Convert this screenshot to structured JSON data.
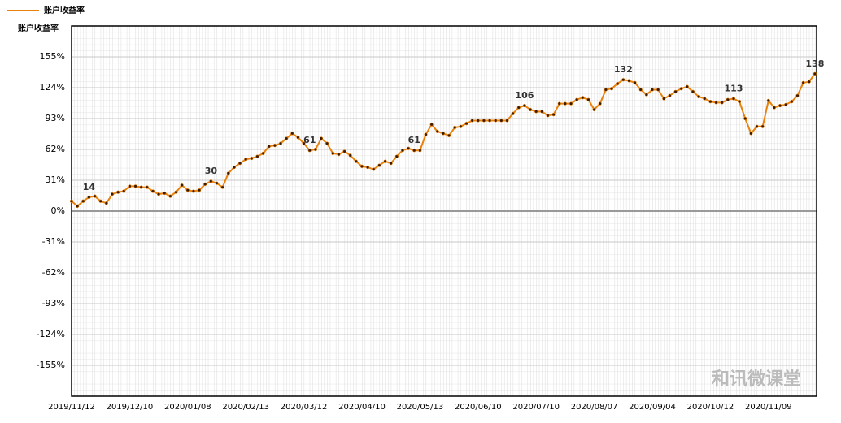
{
  "chart_data": {
    "type": "line",
    "legend_label": "账户收益率",
    "y_label": "账户收益率",
    "watermark": "和讯微课堂",
    "series": [
      {
        "name": "账户收益率",
        "color": "#e8820c",
        "values": [
          10,
          5,
          10,
          14,
          15,
          10,
          8,
          17,
          19,
          20,
          25,
          25,
          24,
          24,
          20,
          17,
          18,
          15,
          19,
          26,
          21,
          20,
          21,
          27,
          30,
          28,
          24,
          38,
          44,
          48,
          52,
          53,
          55,
          58,
          65,
          66,
          68,
          73,
          78,
          74,
          68,
          61,
          62,
          73,
          68,
          58,
          57,
          60,
          56,
          50,
          45,
          44,
          42,
          46,
          50,
          48,
          55,
          61,
          63,
          61,
          61,
          77,
          87,
          80,
          78,
          76,
          84,
          85,
          88,
          91,
          91,
          91,
          91,
          91,
          91,
          91,
          98,
          104,
          106,
          102,
          100,
          100,
          96,
          97,
          108,
          108,
          108,
          112,
          114,
          112,
          102,
          108,
          122,
          123,
          128,
          132,
          131,
          129,
          122,
          117,
          122,
          122,
          113,
          116,
          120,
          123,
          125,
          120,
          115,
          113,
          110,
          109,
          109,
          112,
          113,
          110,
          93,
          78,
          85,
          85,
          111,
          104,
          106,
          107,
          110,
          116,
          129,
          130,
          138
        ],
        "value_labels": [
          null,
          null,
          null,
          "14",
          null,
          null,
          null,
          null,
          null,
          null,
          null,
          null,
          null,
          null,
          null,
          null,
          null,
          null,
          null,
          null,
          null,
          null,
          null,
          null,
          "30",
          null,
          null,
          null,
          null,
          null,
          null,
          null,
          null,
          null,
          null,
          null,
          null,
          null,
          null,
          null,
          null,
          "61",
          null,
          null,
          null,
          null,
          null,
          null,
          null,
          null,
          null,
          null,
          null,
          null,
          null,
          null,
          null,
          null,
          null,
          "61",
          null,
          null,
          null,
          null,
          null,
          null,
          null,
          null,
          null,
          null,
          null,
          null,
          null,
          null,
          null,
          null,
          null,
          null,
          "106",
          null,
          null,
          null,
          null,
          null,
          null,
          null,
          null,
          null,
          null,
          null,
          null,
          null,
          null,
          null,
          null,
          "132",
          null,
          null,
          null,
          null,
          null,
          null,
          null,
          null,
          null,
          null,
          null,
          null,
          null,
          null,
          null,
          null,
          null,
          null,
          "113",
          null,
          null,
          null,
          null,
          null,
          null,
          null,
          null,
          null,
          null,
          null,
          null,
          null,
          "138"
        ]
      }
    ],
    "categories": [
      "2019/11/12",
      null,
      null,
      null,
      null,
      null,
      null,
      null,
      null,
      null,
      "2019/12/10",
      null,
      null,
      null,
      null,
      null,
      null,
      null,
      null,
      null,
      "2020/01/08",
      null,
      null,
      null,
      null,
      null,
      null,
      null,
      null,
      null,
      "2020/02/13",
      null,
      null,
      null,
      null,
      null,
      null,
      null,
      null,
      null,
      "2020/03/12",
      null,
      null,
      null,
      null,
      null,
      null,
      null,
      null,
      null,
      "2020/04/10",
      null,
      null,
      null,
      null,
      null,
      null,
      null,
      null,
      null,
      "2020/05/13",
      null,
      null,
      null,
      null,
      null,
      null,
      null,
      null,
      null,
      "2020/06/10",
      null,
      null,
      null,
      null,
      null,
      null,
      null,
      null,
      null,
      "2020/07/10",
      null,
      null,
      null,
      null,
      null,
      null,
      null,
      null,
      null,
      "2020/08/07",
      null,
      null,
      null,
      null,
      null,
      null,
      null,
      null,
      null,
      "2020/09/04",
      null,
      null,
      null,
      null,
      null,
      null,
      null,
      null,
      null,
      "2020/10/12",
      null,
      null,
      null,
      null,
      null,
      null,
      null,
      null,
      null,
      "2020/11/09",
      null,
      null,
      null,
      null,
      null,
      null,
      null,
      null
    ],
    "ylim": [
      -186,
      186
    ],
    "yticks": [
      {
        "value": -155,
        "label": "-155%"
      },
      {
        "value": -124,
        "label": "-124%"
      },
      {
        "value": -93,
        "label": "-93%"
      },
      {
        "value": -62,
        "label": "-62%"
      },
      {
        "value": -31,
        "label": "-31%"
      },
      {
        "value": 0,
        "label": "0%"
      },
      {
        "value": 31,
        "label": "31%"
      },
      {
        "value": 62,
        "label": "62%"
      },
      {
        "value": 93,
        "label": "93%"
      },
      {
        "value": 124,
        "label": "124%"
      },
      {
        "value": 155,
        "label": "155%"
      }
    ],
    "grid": true
  }
}
